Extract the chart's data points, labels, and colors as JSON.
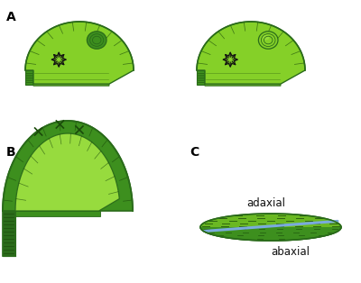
{
  "bg_color": "#ffffff",
  "label_A": "A",
  "label_B": "B",
  "label_C": "C",
  "text_adaxial": "adaxial",
  "text_abaxial": "abaxial",
  "green_dark": "#2a6b1a",
  "green_mid": "#3d8f1e",
  "green_light": "#6ab822",
  "green_bright": "#85d028",
  "green_inner": "#9de040",
  "blue_line": "#7aaadd",
  "stripe_color": "#1a4a0a",
  "arrow_color": "#111111"
}
